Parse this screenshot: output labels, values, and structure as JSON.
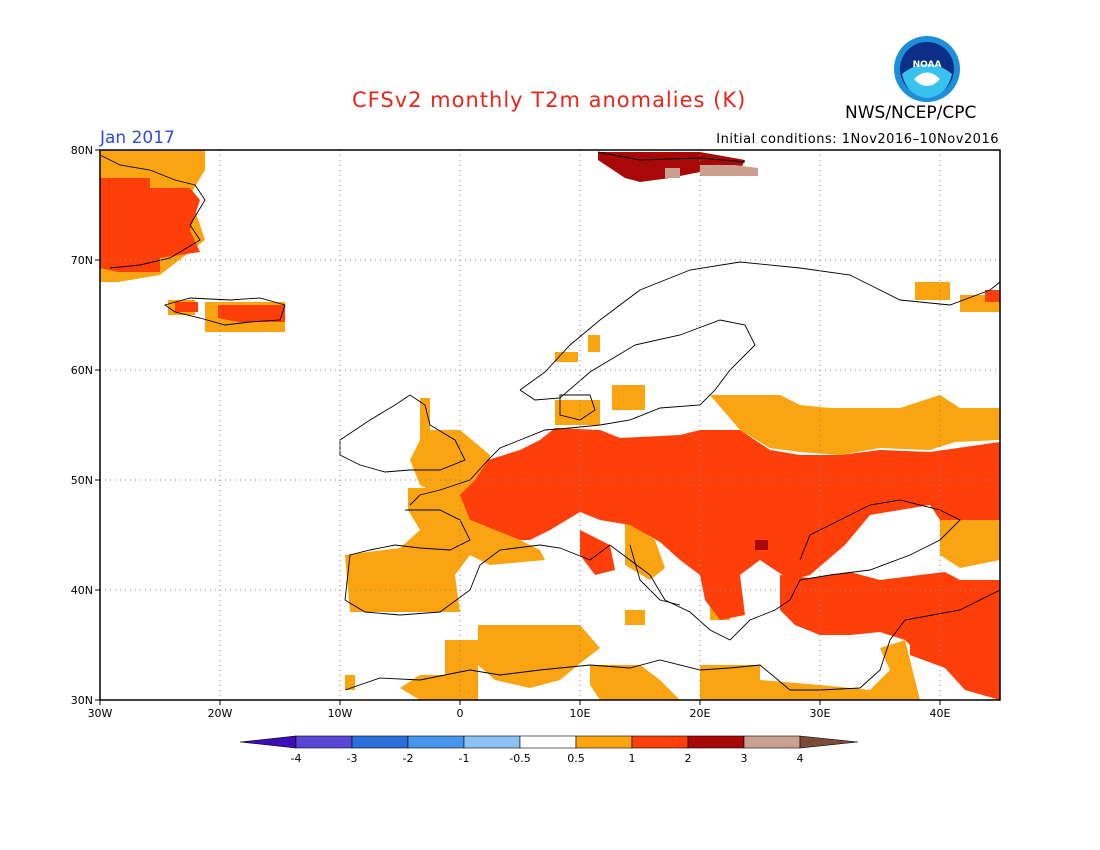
{
  "header": {
    "title": "CFSv2 monthly T2m anomalies (K)",
    "month": "Jan 2017",
    "initial_conditions": "Initial conditions: 1Nov2016–10Nov2016",
    "agency": "NWS/NCEP/CPC",
    "logo_text": "NOAA"
  },
  "map": {
    "lon_range": [
      -30,
      45
    ],
    "lat_range": [
      30,
      80
    ],
    "lat_ticks": [
      "80N",
      "70N",
      "60N",
      "50N",
      "40N",
      "30N"
    ],
    "lon_ticks": [
      "30W",
      "20W",
      "10W",
      "0",
      "10E",
      "20E",
      "30E",
      "40E"
    ],
    "grid": "dotted"
  },
  "legend": {
    "labels": [
      "-4",
      "-3",
      "-2",
      "-1",
      "-0.5",
      "0.5",
      "1",
      "2",
      "3",
      "4"
    ],
    "colors": [
      "#3b0fb5",
      "#5a46d6",
      "#2b6fd8",
      "#4696ec",
      "#8dc2f5",
      "#ffffff",
      "#f9a410",
      "#ff3f0a",
      "#a80808",
      "#caa191",
      "#7a4a3a"
    ]
  },
  "anomaly_colors": {
    "0.5-1": "#f9a410",
    "1-2": "#ff3f0a",
    "2-3": "#a80808",
    "3-4": "#caa191"
  }
}
